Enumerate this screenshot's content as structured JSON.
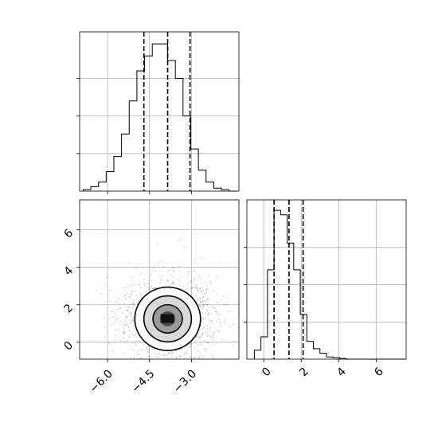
{
  "chart_data": [
    {
      "type": "histogram",
      "panel": "x-marginal",
      "bins": [
        -6.875,
        -6.6,
        -6.325,
        -6.05,
        -5.775,
        -5.5,
        -5.225,
        -4.95,
        -4.675,
        -4.4,
        -4.125,
        -3.85,
        -3.575,
        -3.3,
        -3.025,
        -2.75,
        -2.475,
        -2.2,
        -1.925,
        -1.65,
        -1.375
      ],
      "counts": [
        0.01,
        0.03,
        0.06,
        0.13,
        0.23,
        0.38,
        0.6,
        0.8,
        0.9,
        0.98,
        0.98,
        0.87,
        0.75,
        0.5,
        0.28,
        0.14,
        0.06,
        0.02,
        0.01,
        0.0
      ],
      "quantiles": [
        -4.7,
        -3.85,
        -3.05
      ],
      "xlim": [
        -7.0,
        -1.3
      ],
      "ylim": [
        0,
        1.06
      ],
      "yticks": [
        0.25,
        0.5,
        0.75
      ],
      "xlabel": "",
      "ylabel": "",
      "grid": true
    },
    {
      "type": "heatmap",
      "panel": "joint",
      "x_center": -3.85,
      "y_center": 1.25,
      "x_spread": 0.5,
      "y_spread": 0.72,
      "contour_levels": [
        0.75,
        0.5,
        0.25
      ],
      "xlim": [
        -7.0,
        -1.3
      ],
      "ylim": [
        -0.9,
        7.6
      ],
      "xticks": [
        "−6.0",
        "−4.5",
        "−3.0"
      ],
      "xtick_values": [
        -6.0,
        -4.5,
        -3.0
      ],
      "yticks": [
        "0",
        "2",
        "4",
        "6"
      ],
      "ytick_values": [
        0,
        2,
        4,
        6
      ],
      "xlabel": "",
      "ylabel": "",
      "grid": true
    },
    {
      "type": "histogram",
      "panel": "y-marginal",
      "bins": [
        -0.5,
        -0.15,
        0.2,
        0.55,
        0.9,
        1.25,
        1.6,
        1.95,
        2.3,
        2.65,
        3.0,
        3.35,
        3.7,
        4.05,
        4.4,
        4.75,
        5.1,
        5.45,
        5.8,
        6.15,
        6.5,
        6.85,
        7.2,
        7.55
      ],
      "counts": [
        0.06,
        0.15,
        0.6,
        1.0,
        0.97,
        0.78,
        0.6,
        0.3,
        0.12,
        0.07,
        0.04,
        0.015,
        0.01,
        0.005,
        0.0,
        0.0,
        0.0,
        0.0,
        0.0,
        0.0,
        0.0,
        0.0,
        0.0
      ],
      "quantiles": [
        0.55,
        1.35,
        2.1
      ],
      "xlim": [
        -0.9,
        7.6
      ],
      "ylim": [
        0,
        1.07
      ],
      "yticks": [
        0.25,
        0.5,
        0.75
      ],
      "xticks": [
        "0",
        "2",
        "4",
        "6"
      ],
      "xtick_values": [
        0,
        2,
        4,
        6
      ],
      "xlabel": "",
      "ylabel": "",
      "grid": true
    }
  ]
}
